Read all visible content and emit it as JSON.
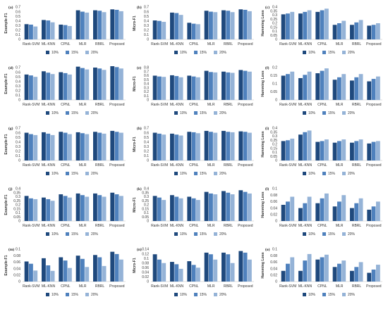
{
  "figure": {
    "series_names": [
      "10%",
      "15%",
      "20%"
    ],
    "series_colors": [
      "#1f497d",
      "#4f81bd",
      "#95b3d7"
    ]
  },
  "chart_data": [
    {
      "label": "(a)",
      "type": "bar",
      "ylabel": "Example-F1",
      "ylim": [
        0,
        0.7
      ],
      "yticks": [
        "0",
        "0.1",
        "0.2",
        "0.3",
        "0.4",
        "0.5",
        "0.6",
        "0.7"
      ],
      "categories": [
        "Rank-SVM",
        "ML-KNN",
        "CPNL",
        "MLR",
        "RBRL",
        "Proposed"
      ],
      "series": [
        {
          "name": "10%",
          "values": [
            0.33,
            0.42,
            0.32,
            0.63,
            0.63,
            0.65
          ]
        },
        {
          "name": "15%",
          "values": [
            0.32,
            0.41,
            0.31,
            0.6,
            0.62,
            0.64
          ]
        },
        {
          "name": "20%",
          "values": [
            0.28,
            0.37,
            0.29,
            0.58,
            0.59,
            0.61
          ]
        }
      ]
    },
    {
      "label": "(b)",
      "type": "bar",
      "ylabel": "Micro-F1",
      "ylim": [
        0,
        0.7
      ],
      "yticks": [
        "0",
        "0.1",
        "0.2",
        "0.3",
        "0.4",
        "0.5",
        "0.6",
        "0.7"
      ],
      "categories": [
        "Rank-SVM",
        "ML-KNN",
        "CPNL",
        "MLR",
        "RBRL",
        "Proposed"
      ],
      "series": [
        {
          "name": "10%",
          "values": [
            0.41,
            0.58,
            0.36,
            0.62,
            0.63,
            0.65
          ]
        },
        {
          "name": "15%",
          "values": [
            0.4,
            0.57,
            0.34,
            0.6,
            0.62,
            0.64
          ]
        },
        {
          "name": "20%",
          "values": [
            0.38,
            0.53,
            0.33,
            0.59,
            0.59,
            0.61
          ]
        }
      ]
    },
    {
      "label": "(c)",
      "type": "bar",
      "ylabel": "Hamming Loss",
      "ylim": [
        0,
        0.4
      ],
      "yticks": [
        "0",
        "0.05",
        "0.1",
        "0.15",
        "0.2",
        "0.25",
        "0.3",
        "0.35",
        "0.4"
      ],
      "categories": [
        "Rank-SVM",
        "ML-KNN",
        "CPNL",
        "MLR",
        "RBRL",
        "Proposed"
      ],
      "series": [
        {
          "name": "10%",
          "values": [
            0.31,
            0.32,
            0.34,
            0.18,
            0.18,
            0.17
          ]
        },
        {
          "name": "15%",
          "values": [
            0.32,
            0.34,
            0.36,
            0.2,
            0.21,
            0.18
          ]
        },
        {
          "name": "20%",
          "values": [
            0.34,
            0.36,
            0.38,
            0.23,
            0.24,
            0.2
          ]
        }
      ]
    },
    {
      "label": "(d)",
      "type": "bar",
      "ylabel": "Example-F1",
      "ylim": [
        0,
        0.7
      ],
      "yticks": [
        "0",
        "0.1",
        "0.2",
        "0.3",
        "0.4",
        "0.5",
        "0.6",
        "0.7"
      ],
      "categories": [
        "Rank-SVM",
        "ML-KNN",
        "CPNL",
        "MLR",
        "RBRL",
        "Proposed"
      ],
      "series": [
        {
          "name": "10%",
          "values": [
            0.55,
            0.62,
            0.6,
            0.72,
            0.7,
            0.73
          ]
        },
        {
          "name": "15%",
          "values": [
            0.53,
            0.59,
            0.58,
            0.69,
            0.68,
            0.71
          ]
        },
        {
          "name": "20%",
          "values": [
            0.5,
            0.56,
            0.55,
            0.66,
            0.65,
            0.68
          ]
        }
      ]
    },
    {
      "label": "(e)",
      "type": "bar",
      "ylabel": "Micro-F1",
      "ylim": [
        0,
        0.8
      ],
      "yticks": [
        "0",
        "0.1",
        "0.2",
        "0.3",
        "0.4",
        "0.5",
        "0.6",
        "0.7",
        "0.8"
      ],
      "categories": [
        "Rank-SVM",
        "ML-KNN",
        "CPNL",
        "MLR",
        "RBRL",
        "Proposed"
      ],
      "series": [
        {
          "name": "10%",
          "values": [
            0.6,
            0.61,
            0.6,
            0.72,
            0.7,
            0.74
          ]
        },
        {
          "name": "15%",
          "values": [
            0.58,
            0.59,
            0.58,
            0.69,
            0.68,
            0.72
          ]
        },
        {
          "name": "20%",
          "values": [
            0.57,
            0.56,
            0.56,
            0.68,
            0.67,
            0.7
          ]
        }
      ]
    },
    {
      "label": "(f)",
      "type": "bar",
      "ylabel": "Hamming Loss",
      "ylim": [
        0,
        0.2
      ],
      "yticks": [
        "0",
        "0.05",
        "0.1",
        "0.15",
        "0.2"
      ],
      "categories": [
        "Rank-SVM",
        "ML-KNN",
        "CPNL",
        "MLR",
        "RBRL",
        "Proposed"
      ],
      "series": [
        {
          "name": "10%",
          "values": [
            0.15,
            0.135,
            0.165,
            0.125,
            0.12,
            0.115
          ]
        },
        {
          "name": "15%",
          "values": [
            0.16,
            0.155,
            0.18,
            0.14,
            0.14,
            0.13
          ]
        },
        {
          "name": "20%",
          "values": [
            0.175,
            0.175,
            0.195,
            0.16,
            0.16,
            0.145
          ]
        }
      ]
    },
    {
      "label": "(g)",
      "type": "bar",
      "ylabel": "Example-F1",
      "ylim": [
        0,
        0.7
      ],
      "yticks": [
        "0",
        "0.1",
        "0.2",
        "0.3",
        "0.4",
        "0.5",
        "0.6",
        "0.7"
      ],
      "categories": [
        "Rank-SVM",
        "ML-KNN",
        "CPNL",
        "MLR",
        "RBRL",
        "Proposed"
      ],
      "series": [
        {
          "name": "10%",
          "values": [
            0.6,
            0.61,
            0.62,
            0.61,
            0.62,
            0.64
          ]
        },
        {
          "name": "15%",
          "values": [
            0.57,
            0.58,
            0.6,
            0.59,
            0.6,
            0.62
          ]
        },
        {
          "name": "20%",
          "values": [
            0.55,
            0.55,
            0.57,
            0.57,
            0.58,
            0.6
          ]
        }
      ]
    },
    {
      "label": "(h)",
      "type": "bar",
      "ylabel": "Micro-F1",
      "ylim": [
        0,
        0.7
      ],
      "yticks": [
        "0",
        "0.1",
        "0.2",
        "0.3",
        "0.4",
        "0.5",
        "0.6",
        "0.7"
      ],
      "categories": [
        "Rank-SVM",
        "ML-KNN",
        "CPNL",
        "MLR",
        "RBRL",
        "Proposed"
      ],
      "series": [
        {
          "name": "10%",
          "values": [
            0.6,
            0.58,
            0.62,
            0.64,
            0.64,
            0.63
          ]
        },
        {
          "name": "15%",
          "values": [
            0.58,
            0.56,
            0.61,
            0.62,
            0.62,
            0.62
          ]
        },
        {
          "name": "20%",
          "values": [
            0.56,
            0.54,
            0.59,
            0.6,
            0.61,
            0.6
          ]
        }
      ]
    },
    {
      "label": "(i)",
      "type": "bar",
      "ylabel": "Hamming Loss",
      "ylim": [
        0,
        0.4
      ],
      "yticks": [
        "0",
        "0.05",
        "0.1",
        "0.15",
        "0.2",
        "0.25",
        "0.3",
        "0.35",
        "0.4"
      ],
      "categories": [
        "Rank-SVM",
        "ML-KNN",
        "CPNL",
        "MLR",
        "RBRL",
        "Proposed"
      ],
      "series": [
        {
          "name": "10%",
          "values": [
            0.24,
            0.32,
            0.23,
            0.22,
            0.22,
            0.21
          ]
        },
        {
          "name": "15%",
          "values": [
            0.25,
            0.35,
            0.24,
            0.24,
            0.24,
            0.23
          ]
        },
        {
          "name": "20%",
          "values": [
            0.27,
            0.37,
            0.26,
            0.26,
            0.26,
            0.24
          ]
        }
      ]
    },
    {
      "label": "(j)",
      "type": "bar",
      "ylabel": "Example-F1",
      "ylim": [
        0,
        0.4
      ],
      "yticks": [
        "0",
        "0.05",
        "0.1",
        "0.15",
        "0.2",
        "0.25",
        "0.3",
        "0.35",
        "0.4"
      ],
      "categories": [
        "Rank-SVM",
        "ML-KNN",
        "CPNL",
        "MLR",
        "RBRL",
        "Proposed"
      ],
      "series": [
        {
          "name": "10%",
          "values": [
            0.31,
            0.29,
            0.33,
            0.34,
            0.34,
            0.35
          ]
        },
        {
          "name": "15%",
          "values": [
            0.28,
            0.27,
            0.31,
            0.32,
            0.32,
            0.33
          ]
        },
        {
          "name": "20%",
          "values": [
            0.27,
            0.25,
            0.29,
            0.3,
            0.3,
            0.31
          ]
        }
      ]
    },
    {
      "label": "(k)",
      "type": "bar",
      "ylabel": "Micro-F1",
      "ylim": [
        0,
        0.4
      ],
      "yticks": [
        "0",
        "0.05",
        "0.1",
        "0.15",
        "0.2",
        "0.25",
        "0.3",
        "0.35",
        "0.4"
      ],
      "categories": [
        "Rank-SVM",
        "ML-KNN",
        "CPNL",
        "MLR",
        "RBRL",
        "Proposed"
      ],
      "series": [
        {
          "name": "10%",
          "values": [
            0.31,
            0.32,
            0.3,
            0.36,
            0.37,
            0.38
          ]
        },
        {
          "name": "15%",
          "values": [
            0.29,
            0.3,
            0.28,
            0.34,
            0.35,
            0.36
          ]
        },
        {
          "name": "20%",
          "values": [
            0.26,
            0.28,
            0.26,
            0.33,
            0.33,
            0.34
          ]
        }
      ]
    },
    {
      "label": "(l)",
      "type": "bar",
      "ylabel": "Hamming Loss",
      "ylim": [
        0,
        0.1
      ],
      "yticks": [
        "0",
        "0.02",
        "0.04",
        "0.06",
        "0.08",
        "0.1"
      ],
      "categories": [
        "Rank-SVM",
        "ML-KNN",
        "CPNL",
        "MLR",
        "RBRL",
        "Proposed"
      ],
      "series": [
        {
          "name": "10%",
          "values": [
            0.05,
            0.04,
            0.055,
            0.045,
            0.04,
            0.035
          ]
        },
        {
          "name": "15%",
          "values": [
            0.06,
            0.055,
            0.07,
            0.06,
            0.055,
            0.045
          ]
        },
        {
          "name": "20%",
          "values": [
            0.075,
            0.075,
            0.085,
            0.08,
            0.07,
            0.06
          ]
        }
      ]
    },
    {
      "label": "(m)",
      "type": "bar",
      "ylabel": "Example-F1",
      "ylim": [
        0,
        0.1
      ],
      "yticks": [
        "0",
        "0.02",
        "0.04",
        "0.06",
        "0.08",
        "0.1"
      ],
      "categories": [
        "Rank-SVM",
        "ML-KNN",
        "CPNL",
        "MLR",
        "RBRL",
        "Proposed"
      ],
      "series": [
        {
          "name": "10%",
          "values": [
            0.062,
            0.072,
            0.075,
            0.08,
            0.082,
            0.092
          ]
        },
        {
          "name": "15%",
          "values": [
            0.055,
            0.05,
            0.065,
            0.07,
            0.075,
            0.085
          ]
        },
        {
          "name": "20%",
          "values": [
            0.034,
            0.033,
            0.042,
            0.045,
            0.048,
            0.068
          ]
        }
      ]
    },
    {
      "label": "(n)",
      "type": "bar",
      "ylabel": "Micro-F1",
      "ylim": [
        0,
        0.14
      ],
      "yticks": [
        "0",
        "0.02",
        "0.04",
        "0.06",
        "0.08",
        "0.1",
        "0.12",
        "0.14"
      ],
      "categories": [
        "Rank-SVM",
        "ML-KNN",
        "CPNL",
        "MLR",
        "RBRL",
        "Proposed"
      ],
      "series": [
        {
          "name": "10%",
          "values": [
            0.118,
            0.085,
            0.088,
            0.125,
            0.125,
            0.132
          ]
        },
        {
          "name": "15%",
          "values": [
            0.095,
            0.075,
            0.072,
            0.118,
            0.118,
            0.125
          ]
        },
        {
          "name": "20%",
          "values": [
            0.08,
            0.055,
            0.06,
            0.095,
            0.08,
            0.095
          ]
        }
      ]
    },
    {
      "label": "(o)",
      "type": "bar",
      "ylabel": "Hamming Loss",
      "ylim": [
        0,
        0.1
      ],
      "yticks": [
        "0",
        "0.02",
        "0.04",
        "0.06",
        "0.08",
        "0.1"
      ],
      "categories": [
        "Rank-SVM",
        "ML-KNN",
        "CPNL",
        "MLR",
        "RBRL",
        "Proposed"
      ],
      "series": [
        {
          "name": "10%",
          "values": [
            0.033,
            0.033,
            0.068,
            0.045,
            0.033,
            0.027
          ]
        },
        {
          "name": "15%",
          "values": [
            0.055,
            0.065,
            0.075,
            0.055,
            0.045,
            0.037
          ]
        },
        {
          "name": "20%",
          "values": [
            0.075,
            0.085,
            0.083,
            0.065,
            0.06,
            0.052
          ]
        }
      ]
    }
  ]
}
